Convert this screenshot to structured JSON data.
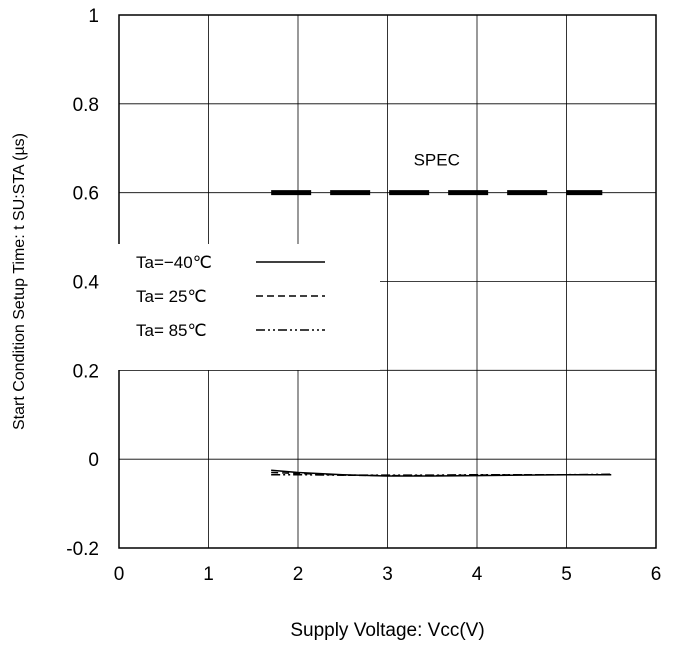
{
  "chart_data": {
    "type": "line",
    "title": "",
    "xlabel": "Supply Voltage: Vcc(V)",
    "ylabel": "Start Condition Setup Time: t SU:STA (µs)",
    "xlim": [
      0,
      6
    ],
    "ylim": [
      -0.2,
      1
    ],
    "x_ticks": [
      "0",
      "1",
      "2",
      "3",
      "4",
      "5",
      "6"
    ],
    "y_ticks": [
      "-0.2",
      "0",
      "0.2",
      "0.4",
      "0.6",
      "0.8",
      "1"
    ],
    "grid": true,
    "legend_position": "left",
    "series": [
      {
        "name": "Ta=−40℃",
        "style": "solid",
        "x": [
          1.7,
          2.0,
          2.5,
          3.0,
          3.5,
          4.0,
          4.5,
          5.0,
          5.5
        ],
        "y": [
          -0.025,
          -0.03,
          -0.035,
          -0.038,
          -0.038,
          -0.037,
          -0.036,
          -0.035,
          -0.035
        ]
      },
      {
        "name": "Ta= 25℃",
        "style": "dashed",
        "x": [
          1.7,
          2.0,
          2.5,
          3.0,
          3.5,
          4.0,
          4.5,
          5.0,
          5.5
        ],
        "y": [
          -0.03,
          -0.032,
          -0.036,
          -0.037,
          -0.037,
          -0.036,
          -0.035,
          -0.035,
          -0.035
        ]
      },
      {
        "name": "Ta= 85℃",
        "style": "dashdot",
        "x": [
          1.7,
          2.0,
          2.5,
          3.0,
          3.5,
          4.0,
          4.5,
          5.0,
          5.5
        ],
        "y": [
          -0.035,
          -0.035,
          -0.036,
          -0.036,
          -0.036,
          -0.035,
          -0.035,
          -0.035,
          -0.034
        ]
      }
    ],
    "spec": {
      "label": "SPEC",
      "value": 0.6,
      "x_range": [
        1.7,
        5.4
      ]
    }
  }
}
